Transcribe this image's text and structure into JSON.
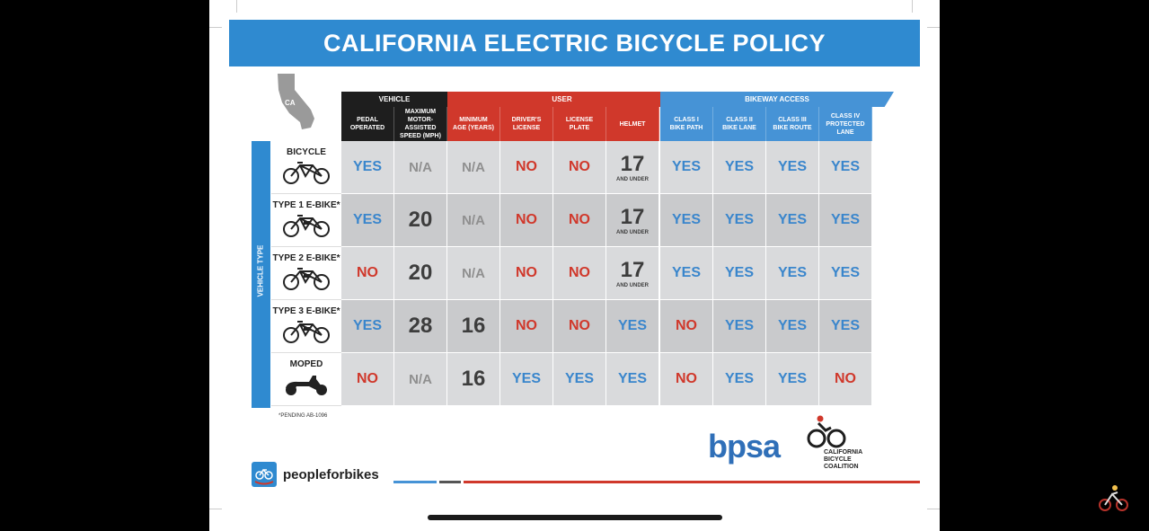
{
  "title": "CALIFORNIA ELECTRIC BICYCLE POLICY",
  "map_label": "CA",
  "groups": {
    "vehicle": "VEHICLE",
    "user": "USER",
    "bikeway": "BIKEWAY ACCESS"
  },
  "side_label": "VEHICLE TYPE",
  "columns": [
    {
      "label": "PEDAL\nOPERATED",
      "group": "vehicle"
    },
    {
      "label": "MAXIMUM\nMOTOR-ASSISTED\nSPEED (MPH)",
      "group": "vehicle"
    },
    {
      "label": "MINIMUM\nAGE (YEARS)",
      "group": "user"
    },
    {
      "label": "DRIVER'S\nLICENSE",
      "group": "user"
    },
    {
      "label": "LICENSE\nPLATE",
      "group": "user"
    },
    {
      "label": "HELMET",
      "group": "user"
    },
    {
      "label": "CLASS I\nBIKE PATH",
      "group": "bikeway"
    },
    {
      "label": "CLASS II\nBIKE LANE",
      "group": "bikeway"
    },
    {
      "label": "CLASS III\nBIKE ROUTE",
      "group": "bikeway"
    },
    {
      "label": "CLASS IV\nPROTECTED LANE",
      "group": "bikeway"
    }
  ],
  "rows": [
    {
      "vehicle": "BICYCLE",
      "icon": "bicycle-icon",
      "cells": [
        "YES",
        "N/A",
        "N/A",
        "NO",
        "NO",
        "17|AND UNDER",
        "YES",
        "YES",
        "YES",
        "YES"
      ]
    },
    {
      "vehicle": "TYPE 1 E-BIKE*",
      "icon": "ebike-icon",
      "cells": [
        "YES",
        "20",
        "N/A",
        "NO",
        "NO",
        "17|AND UNDER",
        "YES",
        "YES",
        "YES",
        "YES"
      ]
    },
    {
      "vehicle": "TYPE 2 E-BIKE*",
      "icon": "ebike-icon",
      "cells": [
        "NO",
        "20",
        "N/A",
        "NO",
        "NO",
        "17|AND UNDER",
        "YES",
        "YES",
        "YES",
        "YES"
      ]
    },
    {
      "vehicle": "TYPE 3 E-BIKE*",
      "icon": "ebike-icon",
      "cells": [
        "YES",
        "28",
        "16",
        "NO",
        "NO",
        "YES",
        "NO",
        "YES",
        "YES",
        "YES"
      ]
    },
    {
      "vehicle": "MOPED",
      "icon": "moped-icon",
      "cells": [
        "NO",
        "N/A",
        "16",
        "YES",
        "YES",
        "YES",
        "NO",
        "YES",
        "YES",
        "NO"
      ]
    }
  ],
  "footnote": "*PENDING AB-1096",
  "logos": {
    "peopleforbikes": "peopleforbikes",
    "bpsa": "bpsa",
    "cbc": "CALIFORNIA\nBICYCLE\nCOALITION"
  },
  "colors": {
    "blue": "#2f8ad0",
    "red": "#d0382b",
    "black": "#1e1e1e",
    "gray": "#8f8f8f"
  }
}
